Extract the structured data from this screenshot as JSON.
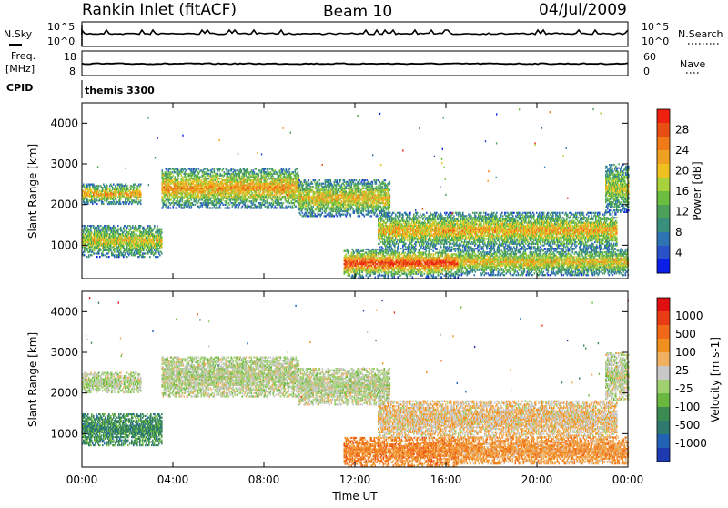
{
  "header": {
    "station": "Rankin Inlet (fitACF)",
    "beam": "Beam 10",
    "date": "04/Jul/2009"
  },
  "strips": {
    "nsky_label": "N.Sky",
    "nsearch_label": "N.Search",
    "nsky_ticks": [
      "10^5",
      "10^0"
    ],
    "nsearch_ticks": [
      "10^5",
      "10^0"
    ],
    "freq_label_1": "Freq.",
    "freq_label_2": "[MHz]",
    "freq_ticks": [
      "18",
      "8"
    ],
    "nave_label": "Nave",
    "nave_ticks": [
      "60",
      "0"
    ],
    "cpid_label": "CPID",
    "cpid_text": "themis 3300"
  },
  "chart_data": [
    {
      "type": "heatmap",
      "title": "",
      "ylabel": "Slant Range [km]",
      "xlabel": "",
      "xlim": [
        0,
        24
      ],
      "ylim": [
        180,
        4500
      ],
      "x_ticks": [
        "00:00",
        "04:00",
        "08:00",
        "12:00",
        "16:00",
        "20:00",
        "00:00"
      ],
      "y_ticks": [
        1000,
        2000,
        3000,
        4000
      ],
      "colorbar": {
        "label": "Power [dB]",
        "ticks": [
          "4",
          "8",
          "12",
          "16",
          "20",
          "24",
          "28"
        ],
        "colors": [
          "#0a1ee6",
          "#2a52c8",
          "#2e74b4",
          "#3a8f7c",
          "#4ba05a",
          "#6cbf3e",
          "#a8d23c",
          "#f0c020",
          "#f0a020",
          "#f07a18",
          "#e84e14",
          "#ee2010"
        ]
      },
      "regions": [
        {
          "name": "band1-upper",
          "t": [
            0,
            2.6
          ],
          "r": [
            2000,
            2500
          ],
          "level": 0.55
        },
        {
          "name": "band1-lower",
          "t": [
            0,
            3.5
          ],
          "r": [
            700,
            1500
          ],
          "level": 0.45
        },
        {
          "name": "band2",
          "t": [
            3.5,
            9.5
          ],
          "r": [
            1900,
            2900
          ],
          "level": 0.6
        },
        {
          "name": "band3",
          "t": [
            9.5,
            13.5
          ],
          "r": [
            1700,
            2600
          ],
          "level": 0.5
        },
        {
          "name": "band4",
          "t": [
            13.0,
            23.5
          ],
          "r": [
            900,
            1800
          ],
          "level": 0.55
        },
        {
          "name": "band5-near",
          "t": [
            11.5,
            16.5
          ],
          "r": [
            200,
            900
          ],
          "level": 0.8
        },
        {
          "name": "band6-near",
          "t": [
            16.5,
            24
          ],
          "r": [
            250,
            900
          ],
          "level": 0.5
        },
        {
          "name": "band7-far",
          "t": [
            23.0,
            24
          ],
          "r": [
            1800,
            3000
          ],
          "level": 0.4
        }
      ]
    },
    {
      "type": "heatmap",
      "title": "",
      "ylabel": "Slant Range [km]",
      "xlabel": "Time UT",
      "xlim": [
        0,
        24
      ],
      "ylim": [
        180,
        4500
      ],
      "x_ticks": [
        "00:00",
        "04:00",
        "08:00",
        "12:00",
        "16:00",
        "20:00",
        "00:00"
      ],
      "y_ticks": [
        1000,
        2000,
        3000,
        4000
      ],
      "colorbar": {
        "label": "Velocity [m s-1]",
        "ticks": [
          "1000",
          "500",
          "100",
          "25",
          "-25",
          "-100",
          "-500",
          "-1000"
        ],
        "colors": [
          "#1f3ab0",
          "#2262b4",
          "#2e7a6e",
          "#3a8a52",
          "#6ab840",
          "#a0d070",
          "#c8c8c8",
          "#f0b060",
          "#f09020",
          "#f06818",
          "#e83c14",
          "#e01010"
        ]
      },
      "regions": [
        {
          "name": "band1-upper",
          "t": [
            0,
            2.6
          ],
          "r": [
            2000,
            2500
          ],
          "level": 0.5
        },
        {
          "name": "band1-lower",
          "t": [
            0,
            3.5
          ],
          "r": [
            700,
            1500
          ],
          "level": 0.25
        },
        {
          "name": "band2",
          "t": [
            3.5,
            9.5
          ],
          "r": [
            1900,
            2900
          ],
          "level": 0.5
        },
        {
          "name": "band3",
          "t": [
            9.5,
            13.5
          ],
          "r": [
            1700,
            2600
          ],
          "level": 0.5
        },
        {
          "name": "band4",
          "t": [
            13.0,
            23.5
          ],
          "r": [
            900,
            1800
          ],
          "level": 0.6
        },
        {
          "name": "band5-near",
          "t": [
            11.5,
            16.5
          ],
          "r": [
            200,
            900
          ],
          "level": 0.75
        },
        {
          "name": "band6-near",
          "t": [
            16.5,
            24
          ],
          "r": [
            250,
            900
          ],
          "level": 0.7
        },
        {
          "name": "band7-far",
          "t": [
            23.0,
            24
          ],
          "r": [
            1800,
            3000
          ],
          "level": 0.5
        }
      ]
    }
  ]
}
